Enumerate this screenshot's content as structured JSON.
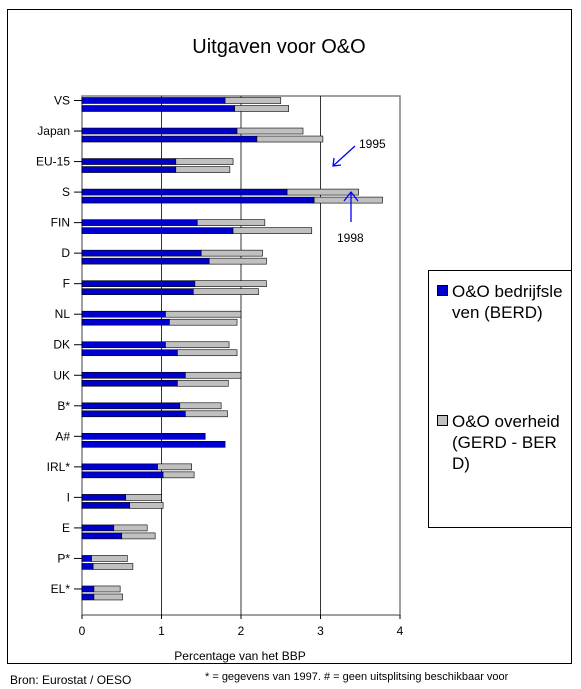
{
  "chart_data": {
    "type": "bar",
    "orientation": "horizontal",
    "stacked": true,
    "title": "Uitgaven voor O&O",
    "xlabel": "Percentage van het BBP",
    "xlim": [
      0,
      4
    ],
    "xticks": [
      "0",
      "1",
      "2",
      "3",
      "4"
    ],
    "grid": "vertical",
    "categories": [
      "VS",
      "Japan",
      "EU-15",
      "S",
      "FIN",
      "D",
      "F",
      "NL",
      "DK",
      "UK",
      "B*",
      "A#",
      "IRL*",
      "I",
      "E",
      "P*",
      "EL*"
    ],
    "years": [
      "1995",
      "1998"
    ],
    "series": [
      {
        "name": "O&O bedrijfsleven (BERD)",
        "color": "#0000cc",
        "values_1995": [
          1.8,
          1.95,
          1.18,
          2.58,
          1.45,
          1.5,
          1.42,
          1.05,
          1.05,
          1.3,
          1.23,
          1.55,
          0.95,
          0.55,
          0.4,
          0.12,
          0.15
        ],
        "values_1998": [
          1.92,
          2.2,
          1.18,
          2.92,
          1.9,
          1.6,
          1.4,
          1.1,
          1.2,
          1.2,
          1.3,
          1.8,
          1.02,
          0.6,
          0.5,
          0.14,
          0.15
        ]
      },
      {
        "name": "O&O overheid (GERD - BERD)",
        "color": "#c0c0c0",
        "values_1995": [
          0.7,
          0.83,
          0.72,
          0.9,
          0.85,
          0.77,
          0.9,
          0.95,
          0.8,
          0.7,
          0.52,
          null,
          0.43,
          0.45,
          0.42,
          0.45,
          0.33
        ],
        "values_1998": [
          0.68,
          0.83,
          0.68,
          0.86,
          0.99,
          0.72,
          0.82,
          0.85,
          0.75,
          0.64,
          0.53,
          null,
          0.39,
          0.42,
          0.42,
          0.5,
          0.36
        ]
      }
    ],
    "annotations": [
      "1995",
      "1998"
    ],
    "legend": "right"
  },
  "footer": {
    "source": "Bron: Eurostat / OESO",
    "note": "* = gegevens van 1997. # = geen uitsplitsing beschikbaar voor"
  }
}
